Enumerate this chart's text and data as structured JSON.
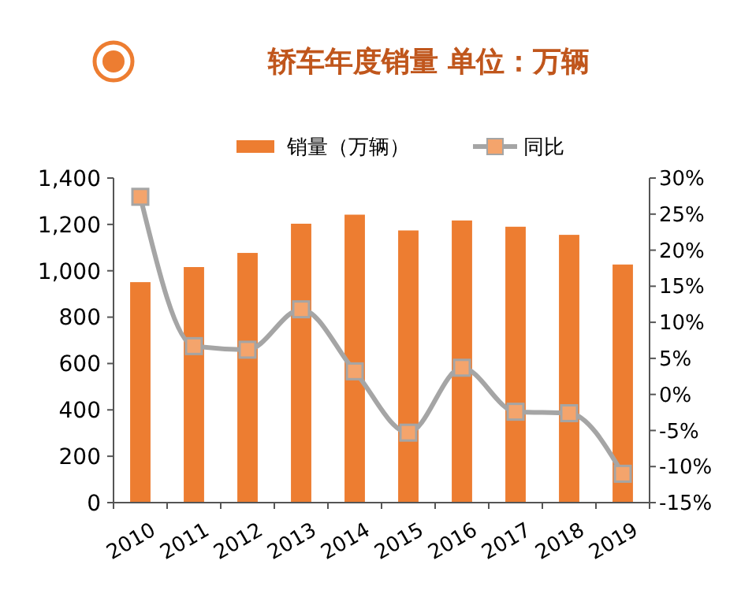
{
  "chart_data": {
    "type": "bar",
    "title": "轿车年度销量 单位：万辆",
    "categories": [
      "2010",
      "2011",
      "2012",
      "2013",
      "2014",
      "2015",
      "2016",
      "2017",
      "2018",
      "2019"
    ],
    "series": [
      {
        "name": "销量（万辆）",
        "color": "#ed7d31",
        "values": [
          951,
          1016,
          1077,
          1203,
          1242,
          1174,
          1217,
          1190,
          1155,
          1027
        ]
      },
      {
        "name": "同比",
        "type": "line",
        "axis": "y2",
        "color": "#a5a5a5",
        "marker": "square",
        "values": [
          27.4,
          6.7,
          6.2,
          11.8,
          3.2,
          -5.3,
          3.7,
          -2.4,
          -2.6,
          -11.0
        ]
      }
    ],
    "ylim": [
      0,
      1400
    ],
    "yticks": [
      0,
      {
        "value": 200,
        "label": "200"
      },
      {
        "value": 400,
        "label": "400"
      },
      {
        "value": 600,
        "label": "600"
      },
      {
        "value": 800,
        "label": "800"
      },
      {
        "value": 1000,
        "label": "1,000"
      },
      {
        "value": 1200,
        "label": "1,200"
      },
      {
        "value": 1400,
        "label": "1,400"
      }
    ],
    "y2lim": [
      -15,
      30
    ],
    "y2ticks": [
      {
        "value": -15,
        "label": "-15%"
      },
      {
        "value": -10,
        "label": "-10%"
      },
      {
        "value": -5,
        "label": "-5%"
      },
      {
        "value": 0,
        "label": "0%"
      },
      {
        "value": 5,
        "label": "5%"
      },
      {
        "value": 10,
        "label": "10%"
      },
      {
        "value": 15,
        "label": "15%"
      },
      {
        "value": 20,
        "label": "20%"
      },
      {
        "value": 25,
        "label": "25%"
      },
      {
        "value": 30,
        "label": "30%"
      }
    ],
    "legend": "top",
    "grid": false
  }
}
